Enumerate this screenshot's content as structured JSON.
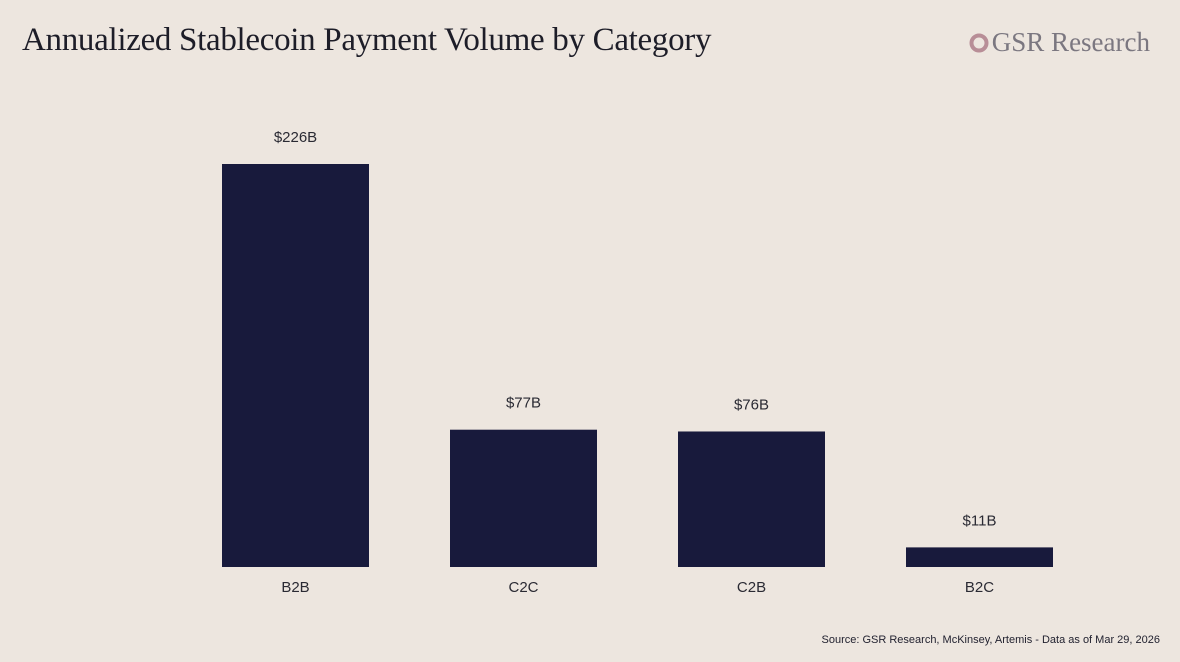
{
  "header": {
    "title": "Annualized Stablecoin Payment Volume by Category",
    "brand": "GSR Research",
    "brand_icon": "gsr-logo-icon"
  },
  "footer": {
    "source": "Source: GSR Research, McKinsey, Artemis - Data as of Mar 29, 2026"
  },
  "colors": {
    "background": "#ede6df",
    "bar": "#181a3c",
    "text": "#1d1d28",
    "brand": "#7b7780",
    "brand_mark": "#b88e97"
  },
  "chart_data": {
    "type": "bar",
    "title": "Annualized Stablecoin Payment Volume by Category",
    "xlabel": "",
    "ylabel": "",
    "categories": [
      "B2B",
      "C2C",
      "C2B",
      "B2C"
    ],
    "values": [
      226,
      77,
      76,
      11
    ],
    "data_labels": [
      "$226B",
      "$77B",
      "$76B",
      "$11B"
    ],
    "unit": "B USD",
    "ylim": [
      0,
      226
    ],
    "grid": false,
    "legend": "none"
  }
}
